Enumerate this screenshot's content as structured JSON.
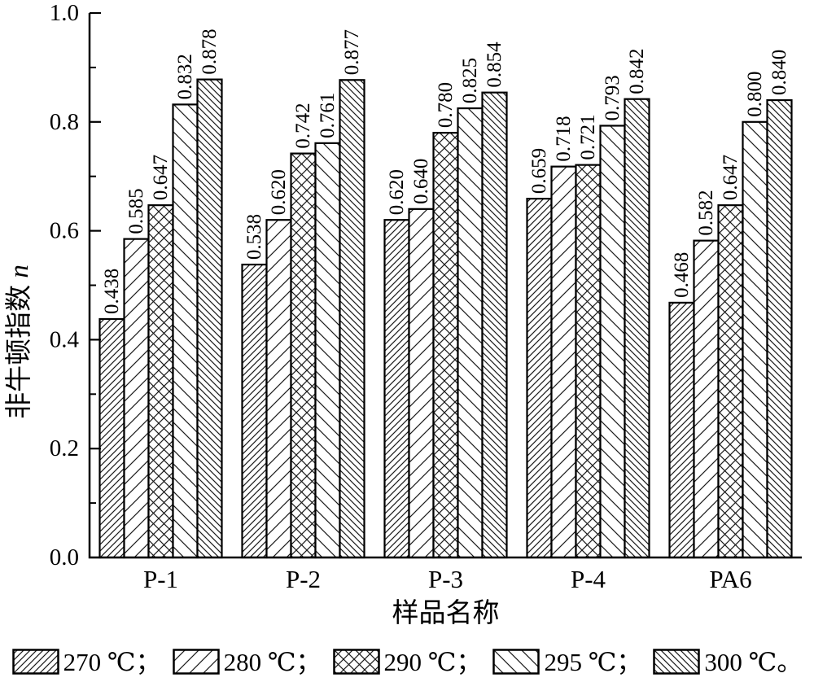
{
  "chart_data": {
    "type": "bar",
    "title": "",
    "xlabel": "样品名称",
    "ylabel": "非牛顿指数 n",
    "ylabel_text": "非牛顿指数 ",
    "ylabel_italic_suffix": "n",
    "categories": [
      "P-1",
      "P-2",
      "P-3",
      "P-4",
      "PA6"
    ],
    "series": [
      {
        "name": "270 ℃",
        "hatch": "diagonal-forward-dense",
        "values": [
          0.438,
          0.538,
          0.62,
          0.659,
          0.468
        ]
      },
      {
        "name": "280 ℃",
        "hatch": "diagonal-forward-sparse",
        "values": [
          0.585,
          0.62,
          0.64,
          0.718,
          0.582
        ]
      },
      {
        "name": "290 ℃",
        "hatch": "crosshatch",
        "values": [
          0.647,
          0.742,
          0.78,
          0.721,
          0.647
        ]
      },
      {
        "name": "295 ℃",
        "hatch": "diagonal-back-sparse",
        "values": [
          0.832,
          0.761,
          0.825,
          0.793,
          0.8
        ]
      },
      {
        "name": "300 ℃",
        "hatch": "diagonal-back-dense",
        "values": [
          0.878,
          0.877,
          0.854,
          0.842,
          0.84
        ]
      }
    ],
    "value_label_decimals": 3,
    "value_labels_rotated": true,
    "ylim": [
      0.0,
      1.0
    ],
    "yticks": [
      "0.0",
      "0.2",
      "0.4",
      "0.6",
      "0.8",
      "1.0"
    ],
    "minor_tick_step": 0.1,
    "grid": false,
    "legend_position": "bottom",
    "legend_labels": [
      "270 ℃；",
      "280 ℃；",
      "290 ℃；",
      "295 ℃；",
      "300 ℃。"
    ]
  },
  "colors": {
    "foreground": "#000000",
    "hatch_line": "#1a1a1a",
    "background": "#ffffff"
  }
}
